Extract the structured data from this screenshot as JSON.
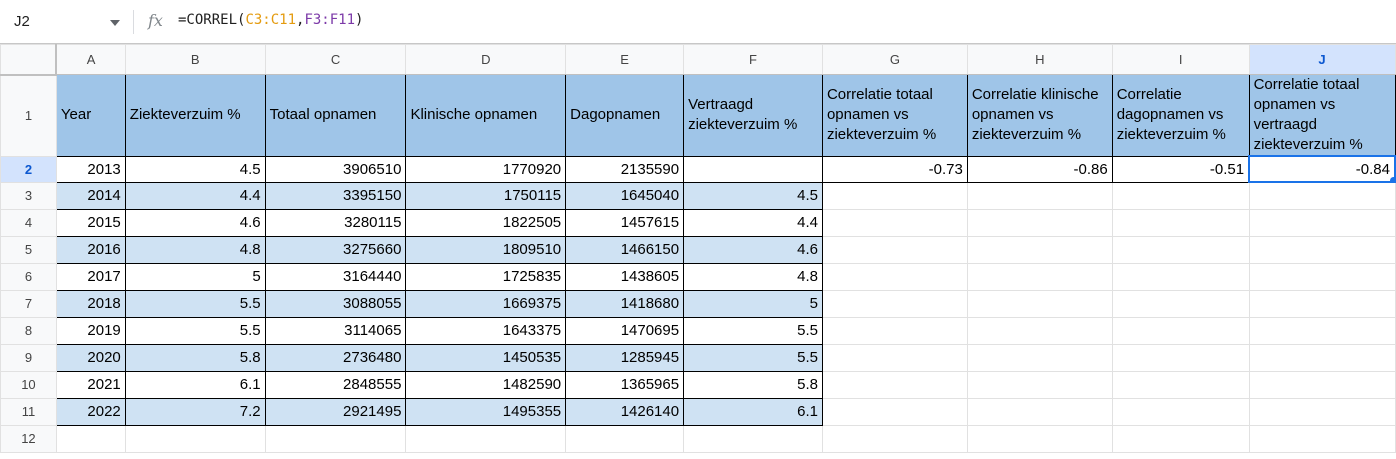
{
  "formula_bar": {
    "name_box": "J2",
    "fx_label": "fx",
    "formula_prefix": "=CORREL(",
    "range1": "C3:C11",
    "comma": ",",
    "range2": "F3:F11",
    "formula_suffix": ")"
  },
  "columns": [
    "A",
    "B",
    "C",
    "D",
    "E",
    "F",
    "G",
    "H",
    "I",
    "J"
  ],
  "rows": [
    "1",
    "2",
    "3",
    "4",
    "5",
    "6",
    "7",
    "8",
    "9",
    "10",
    "11",
    "12"
  ],
  "selected_cell": "J2",
  "header_row": {
    "A": "Year",
    "B": "Ziekteverzuim %",
    "C": "Totaal opnamen",
    "D": "Klinische opnamen",
    "E": "Dagopnamen",
    "F": "Vertraagd ziekteverzuim %",
    "G": "Correlatie totaal opnamen vs ziekteverzuim %",
    "H": "Correlatie klinische opnamen vs ziekteverzuim %",
    "I": "Correlatie dagopnamen vs ziekteverzuim %",
    "J": "Correlatie totaal opnamen vs vertraagd ziekteverzuim %"
  },
  "data_rows": [
    {
      "year": "2013",
      "ziekteverzuim": "4.5",
      "totaal": "3906510",
      "klinisch": "1770920",
      "dag": "2135590",
      "vertraagd": ""
    },
    {
      "year": "2014",
      "ziekteverzuim": "4.4",
      "totaal": "3395150",
      "klinisch": "1750115",
      "dag": "1645040",
      "vertraagd": "4.5"
    },
    {
      "year": "2015",
      "ziekteverzuim": "4.6",
      "totaal": "3280115",
      "klinisch": "1822505",
      "dag": "1457615",
      "vertraagd": "4.4"
    },
    {
      "year": "2016",
      "ziekteverzuim": "4.8",
      "totaal": "3275660",
      "klinisch": "1809510",
      "dag": "1466150",
      "vertraagd": "4.6"
    },
    {
      "year": "2017",
      "ziekteverzuim": "5",
      "totaal": "3164440",
      "klinisch": "1725835",
      "dag": "1438605",
      "vertraagd": "4.8"
    },
    {
      "year": "2018",
      "ziekteverzuim": "5.5",
      "totaal": "3088055",
      "klinisch": "1669375",
      "dag": "1418680",
      "vertraagd": "5"
    },
    {
      "year": "2019",
      "ziekteverzuim": "5.5",
      "totaal": "3114065",
      "klinisch": "1643375",
      "dag": "1470695",
      "vertraagd": "5.5"
    },
    {
      "year": "2020",
      "ziekteverzuim": "5.8",
      "totaal": "2736480",
      "klinisch": "1450535",
      "dag": "1285945",
      "vertraagd": "5.5"
    },
    {
      "year": "2021",
      "ziekteverzuim": "6.1",
      "totaal": "2848555",
      "klinisch": "1482590",
      "dag": "1365965",
      "vertraagd": "5.8"
    },
    {
      "year": "2022",
      "ziekteverzuim": "7.2",
      "totaal": "2921495",
      "klinisch": "1495355",
      "dag": "1426140",
      "vertraagd": "6.1"
    }
  ],
  "correlations": {
    "G2": "-0.73",
    "H2": "-0.86",
    "I2": "-0.51",
    "J2": "-0.84"
  },
  "colors": {
    "header_fill": "#9fc5e8",
    "band_fill": "#cfe2f3",
    "selection": "#1a73e8"
  }
}
